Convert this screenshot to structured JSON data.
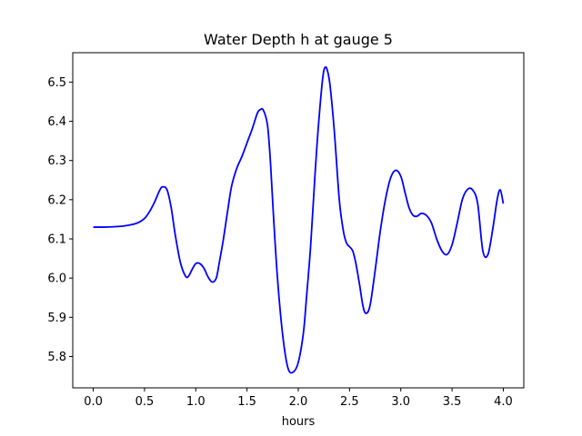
{
  "chart_data": {
    "type": "line",
    "title": "Water Depth h at gauge 5",
    "xlabel": "hours",
    "ylabel": "",
    "xlim": [
      -0.2,
      4.2
    ],
    "ylim": [
      5.72,
      6.575
    ],
    "xticks": [
      0.0,
      0.5,
      1.0,
      1.5,
      2.0,
      2.5,
      3.0,
      3.5,
      4.0
    ],
    "xtick_labels": [
      "0.0",
      "0.5",
      "1.0",
      "1.5",
      "2.0",
      "2.5",
      "3.0",
      "3.5",
      "4.0"
    ],
    "yticks": [
      5.8,
      5.9,
      6.0,
      6.1,
      6.2,
      6.3,
      6.4,
      6.5
    ],
    "ytick_labels": [
      "5.8",
      "5.9",
      "6.0",
      "6.1",
      "6.2",
      "6.3",
      "6.4",
      "6.5"
    ],
    "grid": false,
    "series": [
      {
        "color": "#0000ff",
        "x": [
          0.0,
          0.1,
          0.2,
          0.3,
          0.4,
          0.45,
          0.5,
          0.55,
          0.6,
          0.65,
          0.68,
          0.72,
          0.76,
          0.8,
          0.85,
          0.9,
          0.93,
          0.96,
          1.0,
          1.04,
          1.08,
          1.12,
          1.16,
          1.2,
          1.23,
          1.27,
          1.31,
          1.35,
          1.4,
          1.45,
          1.5,
          1.55,
          1.6,
          1.63,
          1.66,
          1.7,
          1.73,
          1.76,
          1.8,
          1.85,
          1.9,
          1.95,
          2.0,
          2.05,
          2.08,
          2.12,
          2.16,
          2.2,
          2.25,
          2.3,
          2.35,
          2.4,
          2.44,
          2.47,
          2.5,
          2.53,
          2.56,
          2.6,
          2.63,
          2.66,
          2.7,
          2.75,
          2.8,
          2.85,
          2.9,
          2.95,
          3.0,
          3.04,
          3.08,
          3.12,
          3.16,
          3.2,
          3.25,
          3.3,
          3.35,
          3.4,
          3.45,
          3.5,
          3.55,
          3.6,
          3.65,
          3.7,
          3.75,
          3.8,
          3.85,
          3.9,
          3.94,
          3.97,
          4.0
        ],
        "y": [
          6.13,
          6.13,
          6.131,
          6.133,
          6.138,
          6.143,
          6.152,
          6.17,
          6.195,
          6.225,
          6.233,
          6.225,
          6.18,
          6.11,
          6.04,
          6.005,
          6.005,
          6.02,
          6.037,
          6.037,
          6.025,
          6.003,
          5.99,
          6.0,
          6.04,
          6.1,
          6.17,
          6.235,
          6.28,
          6.31,
          6.345,
          6.38,
          6.42,
          6.43,
          6.428,
          6.39,
          6.29,
          6.15,
          5.99,
          5.85,
          5.77,
          5.76,
          5.785,
          5.86,
          5.95,
          6.08,
          6.25,
          6.4,
          6.53,
          6.51,
          6.38,
          6.2,
          6.12,
          6.09,
          6.08,
          6.07,
          6.04,
          5.98,
          5.93,
          5.91,
          5.93,
          6.02,
          6.12,
          6.2,
          6.255,
          6.275,
          6.26,
          6.22,
          6.18,
          6.16,
          6.158,
          6.165,
          6.16,
          6.14,
          6.1,
          6.07,
          6.06,
          6.085,
          6.14,
          6.2,
          6.226,
          6.225,
          6.19,
          6.07,
          6.06,
          6.13,
          6.2,
          6.225,
          6.19
        ]
      }
    ]
  }
}
